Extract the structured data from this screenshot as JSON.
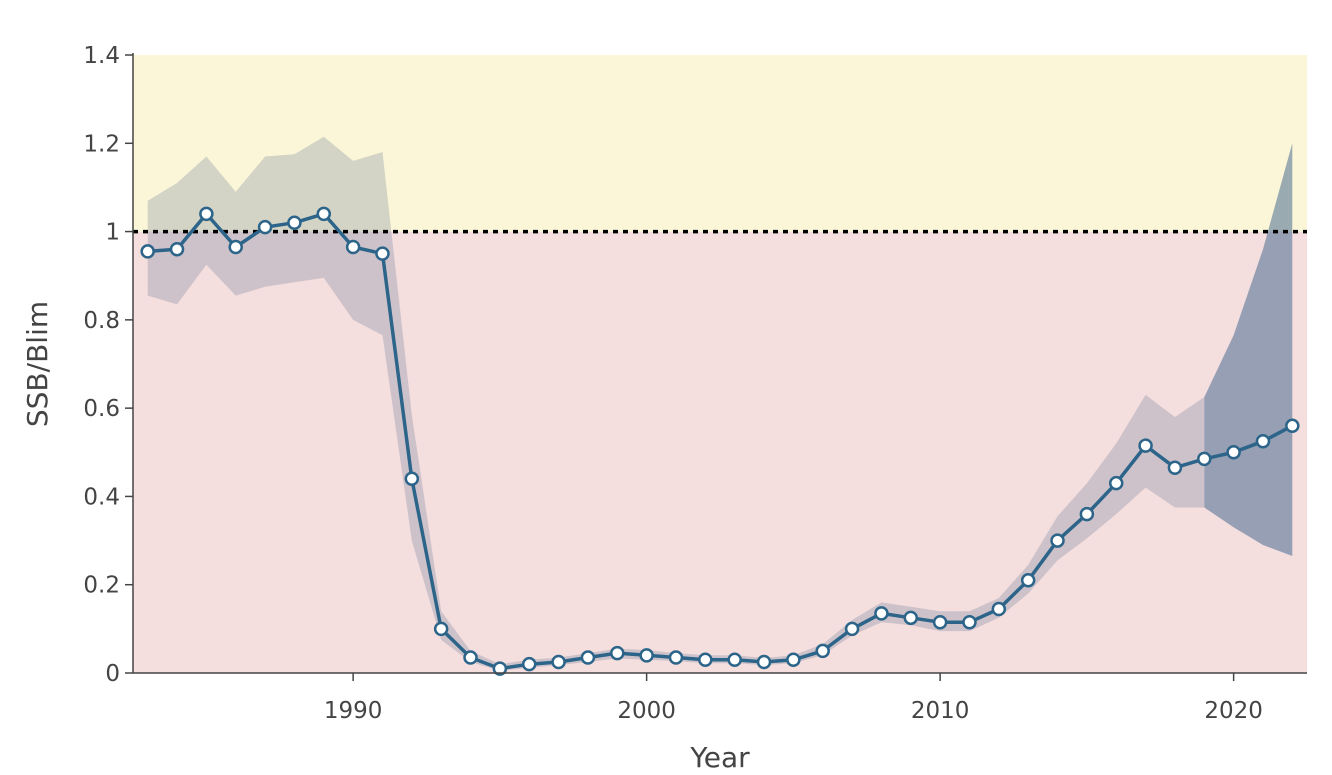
{
  "chart_data": {
    "type": "line",
    "xlabel": "Year",
    "ylabel": "SSB/Blim",
    "xlim": [
      1982.5,
      2022.5
    ],
    "ylim": [
      0,
      1.4
    ],
    "x_ticks": [
      1990,
      2000,
      2010,
      2020
    ],
    "y_ticks": [
      0,
      0.2,
      0.4,
      0.6,
      0.8,
      1,
      1.2,
      1.4
    ],
    "y_tick_labels": [
      "0",
      "0.2",
      "0.4",
      "0.6",
      "0.8",
      "1",
      "1.2",
      "1.4"
    ],
    "x_tick_labels": [
      "1990",
      "2000",
      "2010",
      "2020"
    ],
    "reference_line": {
      "y": 1,
      "style": "dotted",
      "color": "#000000"
    },
    "zones": [
      {
        "from": 0,
        "to": 1,
        "color": "#f4dede"
      },
      {
        "from": 1,
        "to": 1.4,
        "color": "#fbf6d8"
      }
    ],
    "grid": false,
    "series": [
      {
        "x": [
          1983,
          1984,
          1985,
          1986,
          1987,
          1988,
          1989,
          1990,
          1991,
          1992,
          1993,
          1994,
          1995,
          1996,
          1997,
          1998,
          1999,
          2000,
          2001,
          2002,
          2003,
          2004,
          2005,
          2006,
          2007,
          2008,
          2009,
          2010,
          2011,
          2012,
          2013,
          2014,
          2015,
          2016,
          2017,
          2018,
          2019,
          2020,
          2021,
          2022
        ],
        "values": [
          0.955,
          0.96,
          1.04,
          0.965,
          1.01,
          1.02,
          1.04,
          0.965,
          0.95,
          0.44,
          0.1,
          0.035,
          0.01,
          0.02,
          0.025,
          0.035,
          0.045,
          0.04,
          0.035,
          0.03,
          0.03,
          0.025,
          0.03,
          0.05,
          0.1,
          0.135,
          0.125,
          0.115,
          0.115,
          0.145,
          0.21,
          0.3,
          0.36,
          0.43,
          0.515,
          0.465,
          0.485,
          0.5,
          0.525,
          0.56
        ],
        "color": "#2c6589",
        "marker_fill": "#ffffff"
      }
    ],
    "confidence_band": {
      "x": [
        1983,
        1984,
        1985,
        1986,
        1987,
        1988,
        1989,
        1990,
        1991,
        1992,
        1993,
        1994,
        1995,
        1996,
        1997,
        1998,
        1999,
        2000,
        2001,
        2002,
        2003,
        2004,
        2005,
        2006,
        2007,
        2008,
        2009,
        2010,
        2011,
        2012,
        2013,
        2014,
        2015,
        2016,
        2017,
        2018,
        2019
      ],
      "lower": [
        0.855,
        0.835,
        0.925,
        0.855,
        0.875,
        0.885,
        0.895,
        0.8,
        0.765,
        0.3,
        0.075,
        0.025,
        0.005,
        0.012,
        0.018,
        0.025,
        0.033,
        0.03,
        0.027,
        0.022,
        0.022,
        0.018,
        0.022,
        0.04,
        0.085,
        0.115,
        0.108,
        0.095,
        0.095,
        0.125,
        0.18,
        0.255,
        0.305,
        0.36,
        0.42,
        0.375,
        0.375
      ],
      "upper": [
        1.07,
        1.11,
        1.17,
        1.09,
        1.17,
        1.175,
        1.215,
        1.16,
        1.18,
        0.585,
        0.14,
        0.05,
        0.02,
        0.03,
        0.035,
        0.045,
        0.055,
        0.052,
        0.045,
        0.04,
        0.04,
        0.034,
        0.04,
        0.065,
        0.12,
        0.16,
        0.15,
        0.14,
        0.14,
        0.17,
        0.245,
        0.355,
        0.43,
        0.52,
        0.63,
        0.58,
        0.625
      ],
      "color": "#7f88a3",
      "opacity": 0.32
    },
    "forecast_band": {
      "x": [
        2019,
        2020,
        2021,
        2022
      ],
      "lower": [
        0.375,
        0.33,
        0.29,
        0.265
      ],
      "upper": [
        0.625,
        0.765,
        0.96,
        1.2
      ],
      "color": "#4b6c92",
      "opacity": 0.55
    }
  }
}
